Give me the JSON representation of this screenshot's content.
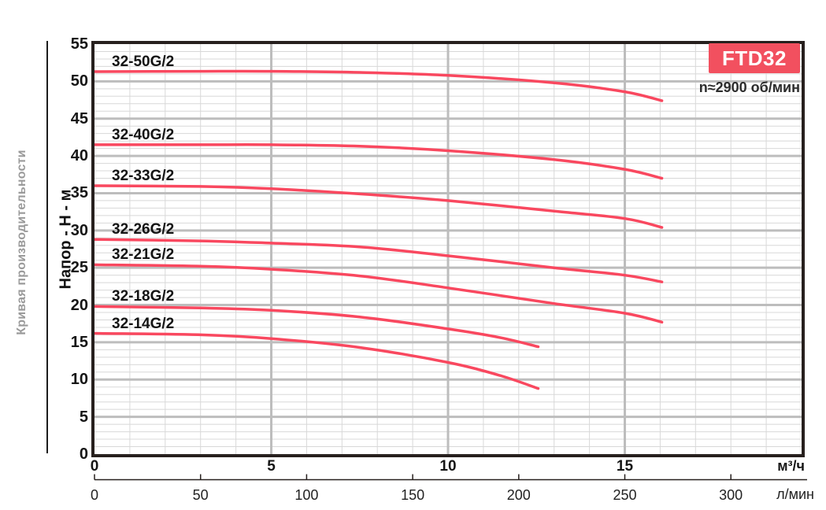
{
  "chart_data": {
    "type": "line",
    "title": "FTD32",
    "subtitle": "n≈2900 об/мин",
    "ylabel": "Напор - Н - м",
    "side_caption": "Кривая производительности",
    "y_axis": {
      "range": [
        0,
        55
      ],
      "ticks": [
        0,
        5,
        10,
        15,
        20,
        25,
        30,
        35,
        40,
        45,
        50,
        55
      ]
    },
    "x_axis_primary": {
      "unit": "м³/ч",
      "range": [
        0,
        20
      ],
      "ticks": [
        0,
        5,
        10,
        15
      ]
    },
    "x_axis_secondary": {
      "unit": "л/мин",
      "ticks": [
        0,
        50,
        100,
        150,
        200,
        250,
        300
      ]
    },
    "grid": {
      "minor_step": 1,
      "major_step": 5,
      "grid_on": true
    },
    "legend_position": "labels-above-curves",
    "series": [
      {
        "name": "32-50G/2",
        "points": [
          [
            0,
            51.3
          ],
          [
            3,
            51.35
          ],
          [
            5,
            51.35
          ],
          [
            7.5,
            51.2
          ],
          [
            10,
            50.8
          ],
          [
            13,
            49.8
          ],
          [
            15,
            48.6
          ],
          [
            16.05,
            47.4
          ]
        ]
      },
      {
        "name": "32-40G/2",
        "points": [
          [
            0,
            41.5
          ],
          [
            3,
            41.5
          ],
          [
            5,
            41.5
          ],
          [
            7.5,
            41.3
          ],
          [
            10,
            40.7
          ],
          [
            13,
            39.5
          ],
          [
            15,
            38.2
          ],
          [
            16.05,
            37.0
          ]
        ]
      },
      {
        "name": "32-33G/2",
        "points": [
          [
            0,
            36.0
          ],
          [
            3,
            35.9
          ],
          [
            5,
            35.6
          ],
          [
            7.5,
            34.9
          ],
          [
            10,
            34.0
          ],
          [
            13,
            32.6
          ],
          [
            15,
            31.6
          ],
          [
            16.05,
            30.4
          ]
        ]
      },
      {
        "name": "32-26G/2",
        "points": [
          [
            0,
            28.8
          ],
          [
            3,
            28.6
          ],
          [
            5,
            28.3
          ],
          [
            7.5,
            27.8
          ],
          [
            10,
            26.6
          ],
          [
            13,
            25.0
          ],
          [
            15,
            24.0
          ],
          [
            16.05,
            23.1
          ]
        ]
      },
      {
        "name": "32-21G/2",
        "points": [
          [
            0,
            25.4
          ],
          [
            3,
            25.2
          ],
          [
            5,
            24.8
          ],
          [
            7.5,
            23.9
          ],
          [
            10,
            22.3
          ],
          [
            13,
            20.2
          ],
          [
            15,
            18.9
          ],
          [
            16.05,
            17.7
          ]
        ]
      },
      {
        "name": "32-18G/2",
        "points": [
          [
            0,
            19.8
          ],
          [
            3,
            19.6
          ],
          [
            5,
            19.3
          ],
          [
            7.5,
            18.4
          ],
          [
            10,
            16.8
          ],
          [
            11.5,
            15.6
          ],
          [
            12.55,
            14.4
          ]
        ]
      },
      {
        "name": "32-14G/2",
        "points": [
          [
            0,
            16.2
          ],
          [
            3,
            16.0
          ],
          [
            5,
            15.5
          ],
          [
            7.5,
            14.3
          ],
          [
            10,
            12.3
          ],
          [
            11.5,
            10.5
          ],
          [
            12.55,
            8.8
          ]
        ]
      }
    ],
    "colors": {
      "curve": "#f9485f",
      "badge": "#f2505f",
      "grid_minor": "#d8d8d8",
      "grid_major": "#bdbdbd",
      "border": "#27201e",
      "axis2_line": "#27201e"
    }
  }
}
